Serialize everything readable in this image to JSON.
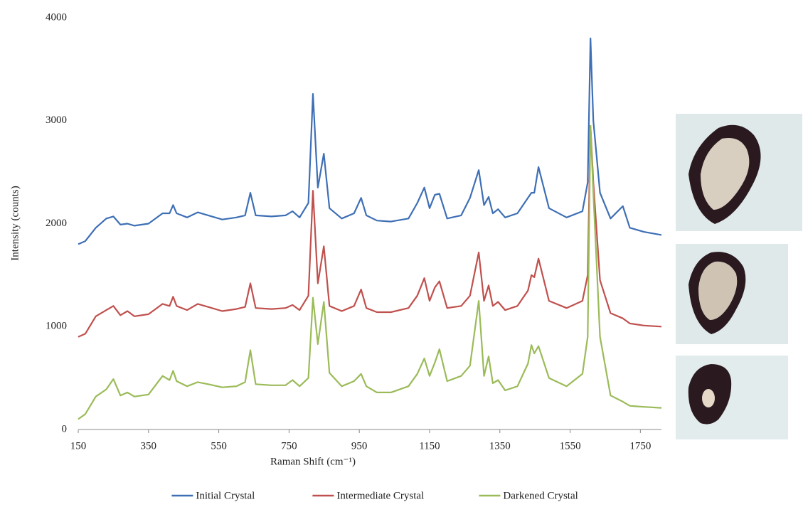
{
  "chart_data": {
    "type": "line",
    "x_label": "Raman Shift (cm⁻¹)",
    "y_label": "Intensity (counts)",
    "xlim": [
      150,
      1810
    ],
    "ylim": [
      0,
      4000
    ],
    "xticks": [
      150,
      350,
      550,
      750,
      950,
      1150,
      1350,
      1550,
      1750
    ],
    "yticks": [
      0,
      1000,
      2000,
      3000,
      4000
    ],
    "grid": false,
    "legend": "bottom",
    "x": [
      150,
      170,
      200,
      230,
      250,
      270,
      290,
      310,
      350,
      390,
      410,
      420,
      430,
      460,
      490,
      520,
      560,
      600,
      625,
      640,
      655,
      700,
      740,
      760,
      780,
      805,
      818,
      832,
      849,
      865,
      900,
      935,
      955,
      970,
      1000,
      1040,
      1090,
      1115,
      1135,
      1150,
      1165,
      1178,
      1200,
      1240,
      1265,
      1290,
      1305,
      1318,
      1330,
      1345,
      1365,
      1400,
      1430,
      1440,
      1448,
      1460,
      1490,
      1540,
      1585,
      1600,
      1608,
      1616,
      1635,
      1665,
      1700,
      1720,
      1760,
      1810
    ],
    "series": [
      {
        "name": "Initial Crystal",
        "color": "#3e6fb5",
        "values": [
          1800,
          1830,
          1960,
          2050,
          2070,
          1990,
          2000,
          1980,
          2000,
          2100,
          2100,
          2180,
          2100,
          2060,
          2110,
          2080,
          2040,
          2060,
          2080,
          2300,
          2080,
          2070,
          2080,
          2120,
          2060,
          2200,
          3260,
          2350,
          2680,
          2150,
          2050,
          2100,
          2250,
          2080,
          2030,
          2020,
          2050,
          2200,
          2350,
          2150,
          2280,
          2290,
          2050,
          2080,
          2250,
          2520,
          2180,
          2260,
          2100,
          2140,
          2060,
          2100,
          2250,
          2300,
          2300,
          2550,
          2150,
          2060,
          2120,
          2400,
          3800,
          3000,
          2300,
          2050,
          2170,
          1960,
          1920,
          1890
        ]
      },
      {
        "name": "Intermediate Crystal",
        "color": "#c0504d",
        "values": [
          900,
          930,
          1100,
          1160,
          1200,
          1110,
          1150,
          1100,
          1120,
          1220,
          1200,
          1290,
          1200,
          1160,
          1220,
          1190,
          1150,
          1170,
          1190,
          1420,
          1180,
          1170,
          1180,
          1210,
          1160,
          1300,
          2320,
          1420,
          1780,
          1200,
          1150,
          1200,
          1360,
          1180,
          1140,
          1140,
          1180,
          1300,
          1470,
          1250,
          1380,
          1440,
          1180,
          1200,
          1300,
          1720,
          1250,
          1400,
          1200,
          1240,
          1160,
          1200,
          1350,
          1500,
          1480,
          1660,
          1250,
          1180,
          1250,
          1500,
          2950,
          2400,
          1450,
          1130,
          1080,
          1030,
          1010,
          1000
        ]
      },
      {
        "name": "Darkened Crystal",
        "color": "#9bbb59",
        "values": [
          100,
          150,
          320,
          390,
          490,
          330,
          360,
          320,
          340,
          520,
          480,
          570,
          470,
          420,
          460,
          440,
          410,
          420,
          460,
          770,
          440,
          430,
          430,
          480,
          420,
          500,
          1280,
          830,
          1240,
          550,
          420,
          470,
          540,
          420,
          360,
          360,
          420,
          540,
          690,
          520,
          650,
          780,
          470,
          520,
          620,
          1250,
          520,
          710,
          450,
          480,
          380,
          420,
          640,
          820,
          740,
          810,
          500,
          420,
          540,
          900,
          2950,
          2300,
          900,
          330,
          270,
          230,
          220,
          210
        ]
      }
    ]
  }
}
